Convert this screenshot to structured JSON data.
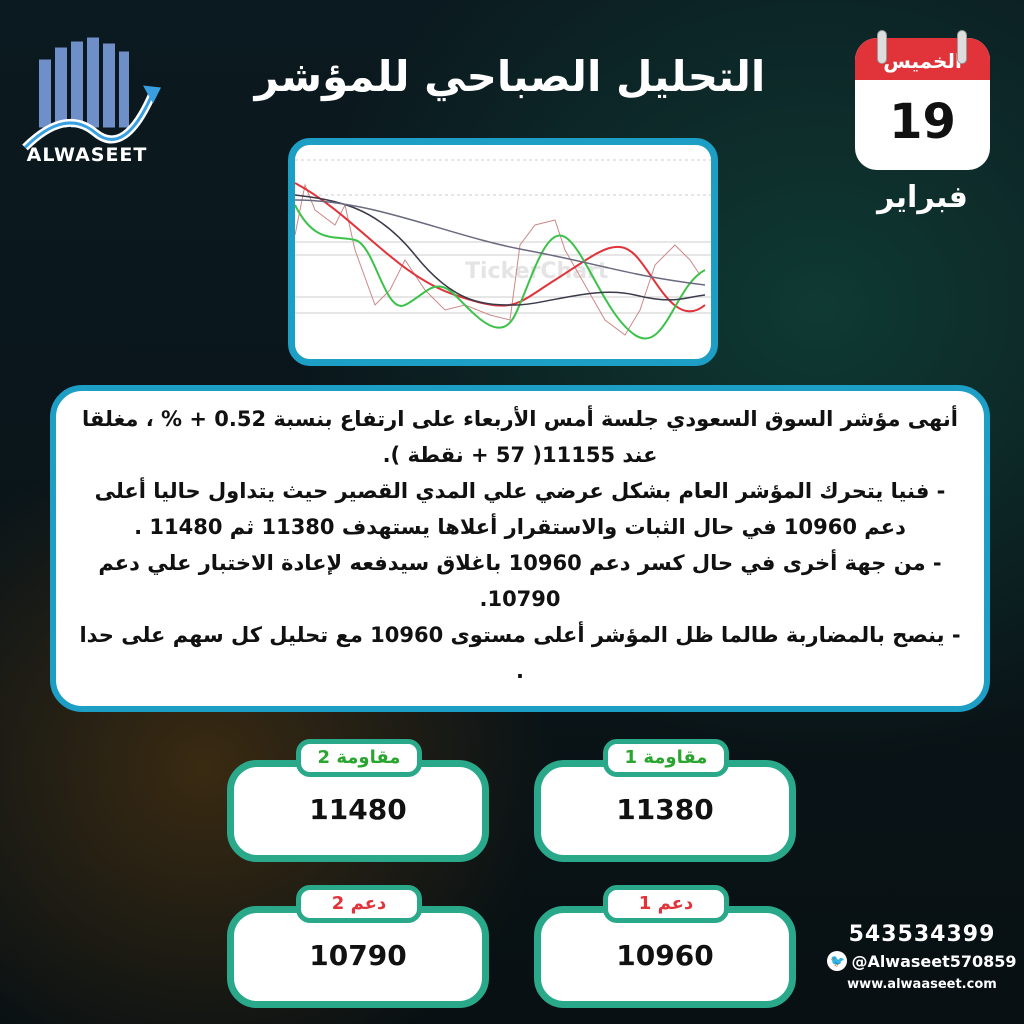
{
  "brand": {
    "logo_text": "ALWASEET"
  },
  "header": {
    "title": "التحليل الصباحي للمؤشر"
  },
  "calendar": {
    "weekday": "الخميس",
    "day": "19",
    "month": "فبراير"
  },
  "chart_image": {
    "watermark": "TickerChart",
    "line_colors": [
      "#e0343a",
      "#3cc24a",
      "#3a3a4a",
      "#6a6a80"
    ]
  },
  "analysis": {
    "paragraphs": [
      "أنهى مؤشر السوق السعودي جلسة أمس الأربعاء على ارتفاع بنسبة 0.52 + % ، مغلقا عند 11155( 57 + نقطة ).",
      "- فنيا يتحرك المؤشر العام بشكل عرضي علي المدي القصير حيث يتداول حاليا أعلى دعم 10960 في حال الثبات والاستقرار أعلاها يستهدف 11380 ثم 11480 .",
      "- من جهة أخرى في حال كسر دعم 10960 باغلاق سيدفعه لإعادة الاختبار علي دعم 10790.",
      "- ينصح بالمضاربة طالما ظل المؤشر أعلى مستوى 10960 مع تحليل كل سهم على حدا ."
    ]
  },
  "levels": [
    {
      "label": "مقاومة 1",
      "value": "11380",
      "kind": "resistance"
    },
    {
      "label": "مقاومة 2",
      "value": "11480",
      "kind": "resistance"
    },
    {
      "label": "دعم 1",
      "value": "10960",
      "kind": "support"
    },
    {
      "label": "دعم 2",
      "value": "10790",
      "kind": "support"
    }
  ],
  "colors": {
    "accent_border": "#1d9ec4",
    "card_border": "#2aa98a",
    "resistance": "#2aa52f",
    "support": "#e0343a"
  },
  "contact": {
    "phone": "543534399",
    "twitter": "@Alwaseet570859",
    "website": "www.alwaaseet.com"
  }
}
